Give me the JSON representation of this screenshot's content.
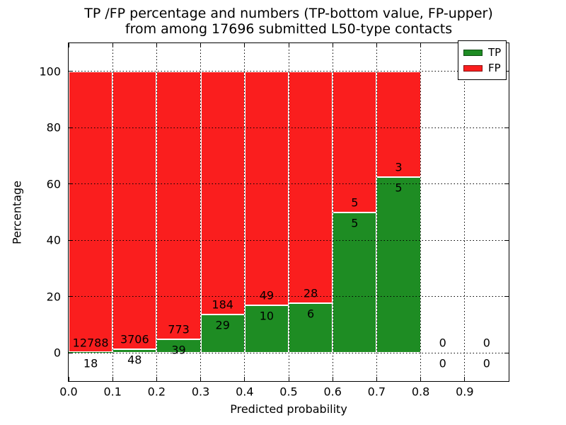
{
  "figure": {
    "title_line1": "TP /FP percentage and numbers (TP-bottom value, FP-upper)",
    "title_line2": "from among 17696 submitted L50-type contacts"
  },
  "chart_data": {
    "type": "bar",
    "stacked": true,
    "title": "TP /FP percentage and numbers (TP-bottom value, FP-upper) from among 17696 submitted L50-type contacts",
    "xlabel": "Predicted probability",
    "ylabel": "Percentage",
    "xlim": [
      0.0,
      1.0
    ],
    "ylim": [
      -10,
      110
    ],
    "xticks": [
      "0.0",
      "0.1",
      "0.2",
      "0.3",
      "0.4",
      "0.5",
      "0.6",
      "0.7",
      "0.8",
      "0.9"
    ],
    "yticks": [
      "0",
      "20",
      "40",
      "60",
      "80",
      "100"
    ],
    "grid": "dotted",
    "legend_position": "upper right",
    "total_contacts": 17696,
    "bar_edge_color": "#ffffff",
    "series": [
      {
        "name": "TP",
        "color": "#1e8c23",
        "position": "bottom"
      },
      {
        "name": "FP",
        "color": "#fa1e1e",
        "position": "top"
      }
    ],
    "bins": [
      {
        "range": [
          0.0,
          0.1
        ],
        "tp": 18,
        "fp": 12788
      },
      {
        "range": [
          0.1,
          0.2
        ],
        "tp": 48,
        "fp": 3706
      },
      {
        "range": [
          0.2,
          0.3
        ],
        "tp": 39,
        "fp": 773
      },
      {
        "range": [
          0.3,
          0.4
        ],
        "tp": 29,
        "fp": 184
      },
      {
        "range": [
          0.4,
          0.5
        ],
        "tp": 10,
        "fp": 49
      },
      {
        "range": [
          0.5,
          0.6
        ],
        "tp": 6,
        "fp": 28
      },
      {
        "range": [
          0.6,
          0.7
        ],
        "tp": 5,
        "fp": 5
      },
      {
        "range": [
          0.7,
          0.8
        ],
        "tp": 5,
        "fp": 3
      },
      {
        "range": [
          0.8,
          0.9
        ],
        "tp": 0,
        "fp": 0
      },
      {
        "range": [
          0.9,
          1.0
        ],
        "tp": 0,
        "fp": 0
      }
    ]
  }
}
